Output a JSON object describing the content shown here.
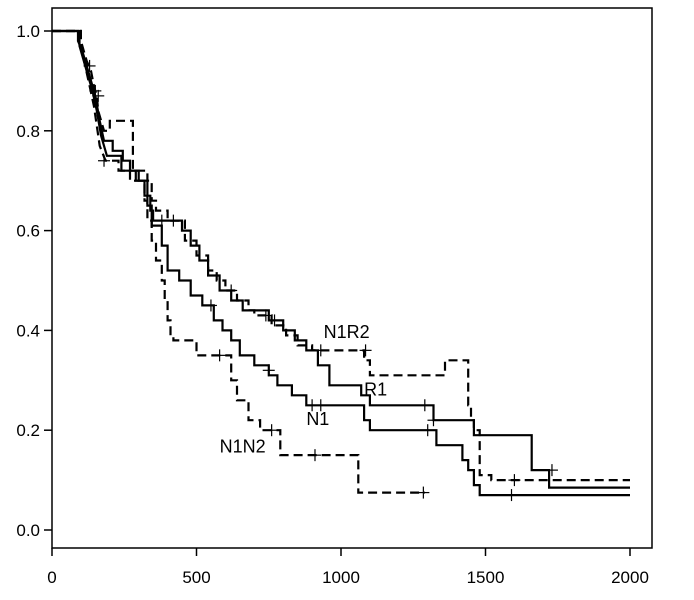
{
  "chart_data": {
    "type": "line",
    "subtype": "kaplan-meier step curves",
    "title": "",
    "xlabel": "",
    "ylabel": "",
    "xlim": [
      0,
      2000
    ],
    "ylim": [
      0.0,
      1.0
    ],
    "x_ticks": [
      0,
      500,
      1000,
      1500,
      2000
    ],
    "y_ticks": [
      0.0,
      0.2,
      0.4,
      0.6,
      0.8,
      1.0
    ],
    "x_tick_labels": [
      "0",
      "500",
      "1000",
      "1500",
      "2000"
    ],
    "y_tick_labels": [
      "0.0",
      "0.2",
      "0.4",
      "0.6",
      "0.8",
      "1.0"
    ],
    "grid": false,
    "legend": "none (series labelled directly on curves)",
    "series": [
      {
        "name": "N1R2",
        "line_style": "dashed",
        "color": "#000000",
        "points": [
          [
            0,
            1.0
          ],
          [
            100,
            1.0
          ],
          [
            100,
            0.98
          ],
          [
            110,
            0.96
          ],
          [
            120,
            0.94
          ],
          [
            135,
            0.92
          ],
          [
            145,
            0.89
          ],
          [
            155,
            0.87
          ],
          [
            160,
            0.84
          ],
          [
            170,
            0.82
          ],
          [
            180,
            0.8
          ],
          [
            200,
            0.8
          ],
          [
            200,
            0.82
          ],
          [
            280,
            0.82
          ],
          [
            280,
            0.72
          ],
          [
            330,
            0.72
          ],
          [
            330,
            0.7
          ],
          [
            345,
            0.7
          ],
          [
            345,
            0.66
          ],
          [
            360,
            0.66
          ],
          [
            360,
            0.64
          ],
          [
            400,
            0.64
          ],
          [
            400,
            0.62
          ],
          [
            460,
            0.62
          ],
          [
            460,
            0.58
          ],
          [
            500,
            0.58
          ],
          [
            500,
            0.55
          ],
          [
            540,
            0.55
          ],
          [
            540,
            0.52
          ],
          [
            570,
            0.52
          ],
          [
            570,
            0.5
          ],
          [
            600,
            0.5
          ],
          [
            600,
            0.48
          ],
          [
            640,
            0.48
          ],
          [
            640,
            0.46
          ],
          [
            680,
            0.46
          ],
          [
            680,
            0.44
          ],
          [
            700,
            0.44
          ],
          [
            700,
            0.43
          ],
          [
            760,
            0.43
          ],
          [
            760,
            0.41
          ],
          [
            810,
            0.41
          ],
          [
            810,
            0.39
          ],
          [
            850,
            0.39
          ],
          [
            850,
            0.37
          ],
          [
            900,
            0.37
          ],
          [
            900,
            0.36
          ],
          [
            1080,
            0.36
          ],
          [
            1080,
            0.34
          ],
          [
            1100,
            0.34
          ],
          [
            1100,
            0.31
          ],
          [
            1360,
            0.31
          ],
          [
            1360,
            0.34
          ],
          [
            1440,
            0.34
          ],
          [
            1440,
            0.25
          ],
          [
            1450,
            0.25
          ],
          [
            1450,
            0.22
          ],
          [
            1460,
            0.22
          ],
          [
            1460,
            0.2
          ],
          [
            1480,
            0.2
          ],
          [
            1480,
            0.11
          ],
          [
            1520,
            0.11
          ],
          [
            1520,
            0.1
          ],
          [
            2000,
            0.1
          ]
        ],
        "censored": [
          [
            130,
            0.93
          ],
          [
            150,
            0.88
          ],
          [
            620,
            0.48
          ],
          [
            740,
            0.43
          ],
          [
            930,
            0.36
          ],
          [
            1085,
            0.36
          ],
          [
            1600,
            0.1
          ]
        ]
      },
      {
        "name": "R1",
        "line_style": "solid",
        "color": "#000000",
        "points": [
          [
            0,
            1.0
          ],
          [
            90,
            1.0
          ],
          [
            90,
            0.98
          ],
          [
            105,
            0.96
          ],
          [
            115,
            0.94
          ],
          [
            130,
            0.91
          ],
          [
            150,
            0.87
          ],
          [
            165,
            0.82
          ],
          [
            180,
            0.78
          ],
          [
            210,
            0.78
          ],
          [
            210,
            0.76
          ],
          [
            245,
            0.76
          ],
          [
            245,
            0.74
          ],
          [
            270,
            0.74
          ],
          [
            270,
            0.72
          ],
          [
            290,
            0.72
          ],
          [
            290,
            0.7
          ],
          [
            320,
            0.7
          ],
          [
            320,
            0.67
          ],
          [
            340,
            0.67
          ],
          [
            340,
            0.64
          ],
          [
            350,
            0.64
          ],
          [
            350,
            0.62
          ],
          [
            450,
            0.62
          ],
          [
            450,
            0.6
          ],
          [
            480,
            0.6
          ],
          [
            480,
            0.57
          ],
          [
            510,
            0.57
          ],
          [
            510,
            0.54
          ],
          [
            540,
            0.54
          ],
          [
            540,
            0.51
          ],
          [
            580,
            0.51
          ],
          [
            580,
            0.48
          ],
          [
            620,
            0.48
          ],
          [
            620,
            0.46
          ],
          [
            660,
            0.46
          ],
          [
            660,
            0.44
          ],
          [
            750,
            0.44
          ],
          [
            750,
            0.42
          ],
          [
            800,
            0.42
          ],
          [
            800,
            0.4
          ],
          [
            840,
            0.4
          ],
          [
            840,
            0.38
          ],
          [
            880,
            0.38
          ],
          [
            880,
            0.36
          ],
          [
            920,
            0.36
          ],
          [
            920,
            0.33
          ],
          [
            960,
            0.33
          ],
          [
            960,
            0.29
          ],
          [
            1070,
            0.29
          ],
          [
            1070,
            0.27
          ],
          [
            1100,
            0.27
          ],
          [
            1100,
            0.25
          ],
          [
            1320,
            0.25
          ],
          [
            1320,
            0.22
          ],
          [
            1460,
            0.22
          ],
          [
            1460,
            0.19
          ],
          [
            1660,
            0.19
          ],
          [
            1660,
            0.12
          ],
          [
            1720,
            0.12
          ],
          [
            1720,
            0.085
          ],
          [
            2000,
            0.085
          ]
        ],
        "censored": [
          [
            380,
            0.62
          ],
          [
            420,
            0.62
          ],
          [
            770,
            0.42
          ],
          [
            1290,
            0.25
          ],
          [
            1320,
            0.22
          ],
          [
            1730,
            0.12
          ]
        ]
      },
      {
        "name": "N1",
        "line_style": "solid",
        "color": "#000000",
        "points": [
          [
            0,
            1.0
          ],
          [
            95,
            1.0
          ],
          [
            95,
            0.97
          ],
          [
            110,
            0.94
          ],
          [
            125,
            0.91
          ],
          [
            140,
            0.88
          ],
          [
            155,
            0.84
          ],
          [
            170,
            0.79
          ],
          [
            190,
            0.75
          ],
          [
            240,
            0.75
          ],
          [
            240,
            0.72
          ],
          [
            300,
            0.72
          ],
          [
            300,
            0.7
          ],
          [
            330,
            0.7
          ],
          [
            330,
            0.65
          ],
          [
            345,
            0.65
          ],
          [
            345,
            0.61
          ],
          [
            380,
            0.61
          ],
          [
            380,
            0.57
          ],
          [
            400,
            0.57
          ],
          [
            400,
            0.52
          ],
          [
            440,
            0.52
          ],
          [
            440,
            0.5
          ],
          [
            480,
            0.5
          ],
          [
            480,
            0.47
          ],
          [
            520,
            0.47
          ],
          [
            520,
            0.45
          ],
          [
            560,
            0.45
          ],
          [
            560,
            0.42
          ],
          [
            590,
            0.42
          ],
          [
            590,
            0.4
          ],
          [
            620,
            0.4
          ],
          [
            620,
            0.38
          ],
          [
            650,
            0.38
          ],
          [
            650,
            0.35
          ],
          [
            700,
            0.35
          ],
          [
            700,
            0.33
          ],
          [
            750,
            0.33
          ],
          [
            750,
            0.31
          ],
          [
            780,
            0.31
          ],
          [
            780,
            0.29
          ],
          [
            830,
            0.29
          ],
          [
            830,
            0.27
          ],
          [
            880,
            0.27
          ],
          [
            880,
            0.25
          ],
          [
            1080,
            0.25
          ],
          [
            1080,
            0.22
          ],
          [
            1100,
            0.22
          ],
          [
            1100,
            0.2
          ],
          [
            1330,
            0.2
          ],
          [
            1330,
            0.17
          ],
          [
            1420,
            0.17
          ],
          [
            1420,
            0.14
          ],
          [
            1440,
            0.14
          ],
          [
            1440,
            0.12
          ],
          [
            1460,
            0.12
          ],
          [
            1460,
            0.09
          ],
          [
            1480,
            0.09
          ],
          [
            1480,
            0.07
          ],
          [
            2000,
            0.07
          ]
        ],
        "censored": [
          [
            160,
            0.87
          ],
          [
            550,
            0.45
          ],
          [
            750,
            0.32
          ],
          [
            900,
            0.25
          ],
          [
            930,
            0.25
          ],
          [
            1300,
            0.2
          ],
          [
            1590,
            0.07
          ]
        ]
      },
      {
        "name": "N1N2",
        "line_style": "dashed",
        "color": "#000000",
        "points": [
          [
            0,
            1.0
          ],
          [
            100,
            1.0
          ],
          [
            100,
            0.97
          ],
          [
            115,
            0.93
          ],
          [
            130,
            0.89
          ],
          [
            145,
            0.85
          ],
          [
            155,
            0.81
          ],
          [
            165,
            0.77
          ],
          [
            185,
            0.74
          ],
          [
            230,
            0.74
          ],
          [
            230,
            0.72
          ],
          [
            270,
            0.72
          ],
          [
            270,
            0.7
          ],
          [
            320,
            0.7
          ],
          [
            320,
            0.66
          ],
          [
            330,
            0.66
          ],
          [
            330,
            0.62
          ],
          [
            345,
            0.62
          ],
          [
            345,
            0.58
          ],
          [
            360,
            0.58
          ],
          [
            360,
            0.54
          ],
          [
            380,
            0.54
          ],
          [
            380,
            0.5
          ],
          [
            390,
            0.5
          ],
          [
            390,
            0.46
          ],
          [
            400,
            0.46
          ],
          [
            400,
            0.42
          ],
          [
            410,
            0.42
          ],
          [
            410,
            0.39
          ],
          [
            420,
            0.39
          ],
          [
            420,
            0.38
          ],
          [
            500,
            0.38
          ],
          [
            500,
            0.35
          ],
          [
            620,
            0.35
          ],
          [
            620,
            0.3
          ],
          [
            640,
            0.3
          ],
          [
            640,
            0.26
          ],
          [
            680,
            0.26
          ],
          [
            680,
            0.22
          ],
          [
            720,
            0.22
          ],
          [
            720,
            0.2
          ],
          [
            790,
            0.2
          ],
          [
            790,
            0.15
          ],
          [
            1060,
            0.15
          ],
          [
            1060,
            0.075
          ],
          [
            1290,
            0.075
          ]
        ],
        "censored": [
          [
            180,
            0.74
          ],
          [
            580,
            0.35
          ],
          [
            760,
            0.2
          ],
          [
            910,
            0.15
          ],
          [
            1285,
            0.075
          ]
        ]
      }
    ],
    "annotations": [
      {
        "text": "N1R2",
        "x": 940,
        "y": 0.385
      },
      {
        "text": "R1",
        "x": 1080,
        "y": 0.27
      },
      {
        "text": "N1",
        "x": 880,
        "y": 0.21
      },
      {
        "text": "N1N2",
        "x": 580,
        "y": 0.155
      }
    ]
  }
}
